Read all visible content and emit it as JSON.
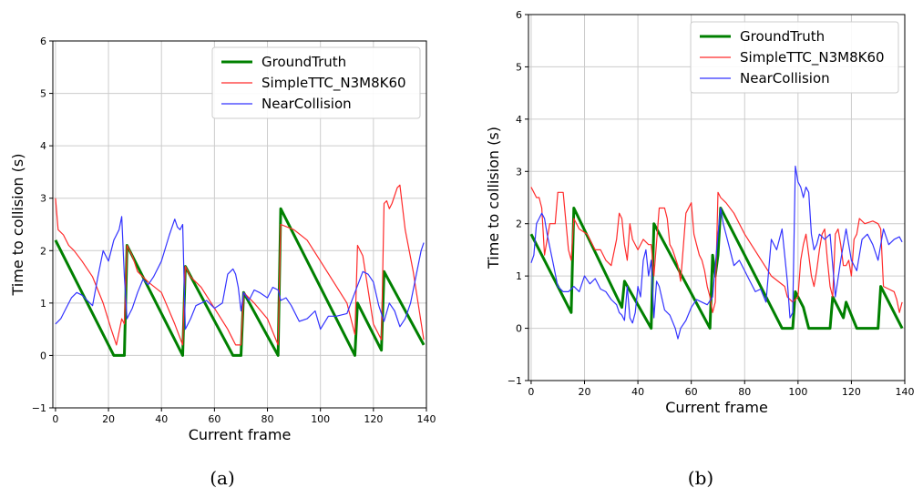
{
  "figure_labels": {
    "a": "(a)",
    "b": "(b)"
  },
  "colors": {
    "ground_truth": "#008000",
    "simple_ttc": "#ff2a2a",
    "near_collision": "#3333ff",
    "grid": "#cccccc",
    "axis": "#000000"
  },
  "chart_data": [
    {
      "type": "line",
      "panel": "a",
      "xlabel": "Current frame",
      "ylabel": "Time to collision (s)",
      "xlim": [
        -1,
        140
      ],
      "ylim": [
        -1,
        6
      ],
      "xticks": [
        0,
        20,
        40,
        60,
        80,
        100,
        120,
        140
      ],
      "yticks": [
        -1,
        0,
        1,
        2,
        3,
        4,
        5,
        6
      ],
      "grid": true,
      "legend_position": "top-right",
      "series": [
        {
          "name": "GroundTruth",
          "color": "#008000",
          "width": 3,
          "x": [
            0,
            21,
            22,
            26,
            27,
            48,
            49,
            67,
            68,
            70,
            71,
            84,
            85,
            113,
            114,
            123,
            124,
            139
          ],
          "y": [
            2.2,
            0.1,
            0,
            0,
            2.1,
            0,
            1.7,
            0,
            0,
            0,
            1.2,
            0,
            2.8,
            0,
            1.0,
            0.1,
            1.6,
            0.2
          ]
        },
        {
          "name": "SimpleTTC_N3M8K60",
          "color": "#ff2a2a",
          "width": 1.2,
          "x": [
            0,
            1,
            3,
            5,
            7,
            10,
            14,
            18,
            21,
            23,
            25,
            26,
            27,
            29,
            31,
            35,
            40,
            45,
            48,
            49,
            51,
            55,
            60,
            65,
            68,
            70,
            71,
            75,
            80,
            84,
            85,
            90,
            95,
            100,
            105,
            110,
            113,
            114,
            116,
            120,
            123,
            124,
            125,
            126,
            127,
            129,
            130,
            132,
            135,
            139
          ],
          "y": [
            3.0,
            2.4,
            2.3,
            2.1,
            2.0,
            1.8,
            1.5,
            1.0,
            0.5,
            0.2,
            0.7,
            0.6,
            2.1,
            1.9,
            1.6,
            1.4,
            1.2,
            0.6,
            0.2,
            1.7,
            1.5,
            1.3,
            0.9,
            0.5,
            0.2,
            0.2,
            1.2,
            1.0,
            0.7,
            0.2,
            2.5,
            2.4,
            2.2,
            1.8,
            1.4,
            1.0,
            0.4,
            2.1,
            1.9,
            0.6,
            0.3,
            2.9,
            2.95,
            2.8,
            2.9,
            3.2,
            3.25,
            2.4,
            1.6,
            0.3
          ]
        },
        {
          "name": "NearCollision",
          "color": "#3333ff",
          "width": 1.2,
          "x": [
            0,
            2,
            4,
            6,
            8,
            10,
            12,
            14,
            16,
            18,
            20,
            22,
            24,
            25,
            26,
            27,
            29,
            31,
            33,
            35,
            37,
            40,
            43,
            45,
            46,
            47,
            48,
            49,
            51,
            53,
            55,
            57,
            60,
            63,
            65,
            67,
            68,
            69,
            70,
            71,
            73,
            75,
            77,
            80,
            82,
            84,
            85,
            87,
            89,
            92,
            95,
            98,
            100,
            103,
            106,
            110,
            113,
            116,
            118,
            120,
            122,
            124,
            126,
            128,
            130,
            132,
            134,
            136,
            138,
            139
          ],
          "y": [
            0.6,
            0.7,
            0.9,
            1.1,
            1.2,
            1.15,
            1.05,
            0.95,
            1.5,
            2.0,
            1.8,
            2.2,
            2.4,
            2.65,
            1.5,
            0.7,
            0.9,
            1.2,
            1.45,
            1.35,
            1.5,
            1.8,
            2.3,
            2.6,
            2.45,
            2.4,
            2.5,
            0.5,
            0.7,
            0.95,
            1.0,
            1.05,
            0.9,
            1.0,
            1.55,
            1.65,
            1.55,
            1.3,
            0.85,
            1.2,
            1.05,
            1.25,
            1.2,
            1.1,
            1.3,
            1.25,
            1.05,
            1.1,
            0.95,
            0.65,
            0.7,
            0.85,
            0.5,
            0.75,
            0.75,
            0.8,
            1.2,
            1.6,
            1.55,
            1.4,
            0.95,
            0.65,
            1.0,
            0.85,
            0.55,
            0.7,
            1.0,
            1.5,
            2.0,
            2.15
          ]
        }
      ]
    },
    {
      "type": "line",
      "panel": "b",
      "xlabel": "Current frame",
      "ylabel": "Time to collision (s)",
      "xlim": [
        -1,
        140
      ],
      "ylim": [
        -1,
        6
      ],
      "xticks": [
        0,
        20,
        40,
        60,
        80,
        100,
        120,
        140
      ],
      "yticks": [
        -1,
        0,
        1,
        2,
        3,
        4,
        5,
        6
      ],
      "grid": true,
      "legend_position": "top-right",
      "series": [
        {
          "name": "GroundTruth",
          "color": "#008000",
          "width": 3,
          "x": [
            0,
            15,
            16,
            34,
            35,
            45,
            46,
            67,
            68,
            69,
            70,
            71,
            94,
            95,
            98,
            99,
            102,
            104,
            109,
            112,
            113,
            117,
            118,
            122,
            128,
            130,
            131,
            139
          ],
          "y": [
            1.8,
            0.3,
            2.3,
            0.4,
            0.9,
            0,
            2.0,
            0,
            1.4,
            1.0,
            1.4,
            2.3,
            0,
            0,
            0,
            0.7,
            0.4,
            0,
            0,
            0,
            0.6,
            0.2,
            0.5,
            0,
            0,
            0,
            0.8,
            0
          ]
        },
        {
          "name": "SimpleTTC_N3M8K60",
          "color": "#ff2a2a",
          "width": 1.2,
          "x": [
            0,
            1,
            2,
            3,
            4,
            5,
            7,
            9,
            10,
            11,
            12,
            14,
            15,
            16,
            18,
            21,
            24,
            26,
            28,
            30,
            32,
            33,
            34,
            35,
            36,
            37,
            38,
            40,
            42,
            44,
            45,
            46,
            48,
            50,
            51,
            52,
            53,
            55,
            56,
            58,
            60,
            61,
            62,
            63,
            64,
            65,
            66,
            67,
            68,
            69,
            70,
            71,
            73,
            76,
            80,
            85,
            90,
            95,
            96,
            98,
            100,
            101,
            102,
            103,
            104,
            105,
            106,
            107,
            108,
            109,
            110,
            111,
            112,
            113,
            114,
            115,
            116,
            117,
            118,
            119,
            120,
            121,
            122,
            123,
            125,
            128,
            130,
            131,
            132,
            134,
            136,
            137,
            138,
            139
          ],
          "y": [
            2.7,
            2.6,
            2.5,
            2.5,
            2.3,
            1.4,
            2.0,
            2.0,
            2.6,
            2.6,
            2.6,
            1.5,
            1.3,
            2.1,
            1.9,
            1.8,
            1.5,
            1.5,
            1.3,
            1.2,
            1.7,
            2.2,
            2.1,
            1.6,
            1.3,
            2.0,
            1.7,
            1.5,
            1.7,
            1.6,
            1.6,
            1.0,
            2.3,
            2.3,
            2.1,
            1.6,
            1.5,
            1.2,
            0.9,
            2.2,
            2.4,
            1.8,
            1.6,
            1.4,
            1.3,
            1.1,
            0.8,
            0.6,
            0.3,
            0.5,
            2.6,
            2.5,
            2.4,
            2.2,
            1.8,
            1.4,
            1.0,
            0.8,
            0.6,
            0.5,
            0.6,
            1.3,
            1.6,
            1.8,
            1.4,
            1.0,
            0.8,
            1.1,
            1.5,
            1.8,
            1.9,
            1.3,
            0.8,
            0.6,
            1.8,
            1.9,
            1.6,
            1.2,
            1.2,
            1.3,
            1.0,
            1.7,
            1.8,
            2.1,
            2.0,
            2.05,
            2.0,
            1.9,
            0.8,
            0.75,
            0.7,
            0.55,
            0.3,
            0.5
          ]
        },
        {
          "name": "NearCollision",
          "color": "#3333ff",
          "width": 1.2,
          "x": [
            0,
            1,
            2,
            3,
            4,
            5,
            6,
            8,
            10,
            12,
            14,
            16,
            18,
            20,
            22,
            24,
            26,
            28,
            30,
            32,
            33,
            34,
            35,
            36,
            37,
            38,
            39,
            40,
            41,
            42,
            43,
            44,
            45,
            46,
            47,
            48,
            50,
            52,
            54,
            55,
            56,
            58,
            60,
            62,
            64,
            66,
            68,
            70,
            71,
            72,
            74,
            76,
            78,
            80,
            82,
            84,
            86,
            88,
            90,
            92,
            94,
            95,
            96,
            97,
            98,
            99,
            100,
            101,
            102,
            103,
            104,
            105,
            106,
            107,
            108,
            110,
            112,
            114,
            116,
            118,
            120,
            122,
            124,
            126,
            128,
            130,
            132,
            134,
            136,
            138,
            139
          ],
          "y": [
            1.25,
            1.4,
            2.0,
            2.1,
            2.2,
            2.1,
            1.8,
            1.3,
            0.8,
            0.7,
            0.7,
            0.8,
            0.7,
            1.0,
            0.85,
            0.95,
            0.75,
            0.7,
            0.55,
            0.45,
            0.3,
            0.25,
            0.15,
            0.8,
            0.2,
            0.1,
            0.3,
            0.8,
            0.6,
            1.3,
            1.5,
            1.0,
            1.3,
            0.2,
            0.9,
            0.8,
            0.35,
            0.25,
            0.0,
            -0.2,
            0.0,
            0.15,
            0.4,
            0.55,
            0.5,
            0.45,
            0.6,
            1.8,
            2.3,
            2.0,
            1.6,
            1.2,
            1.3,
            1.1,
            0.9,
            0.7,
            0.75,
            0.5,
            1.7,
            1.5,
            1.9,
            1.4,
            0.9,
            0.2,
            0.3,
            3.1,
            2.8,
            2.7,
            2.5,
            2.7,
            2.6,
            1.8,
            1.5,
            1.6,
            1.8,
            1.7,
            1.8,
            0.6,
            1.3,
            1.9,
            1.3,
            1.1,
            1.7,
            1.8,
            1.6,
            1.3,
            1.9,
            1.6,
            1.7,
            1.75,
            1.65
          ]
        }
      ]
    }
  ]
}
